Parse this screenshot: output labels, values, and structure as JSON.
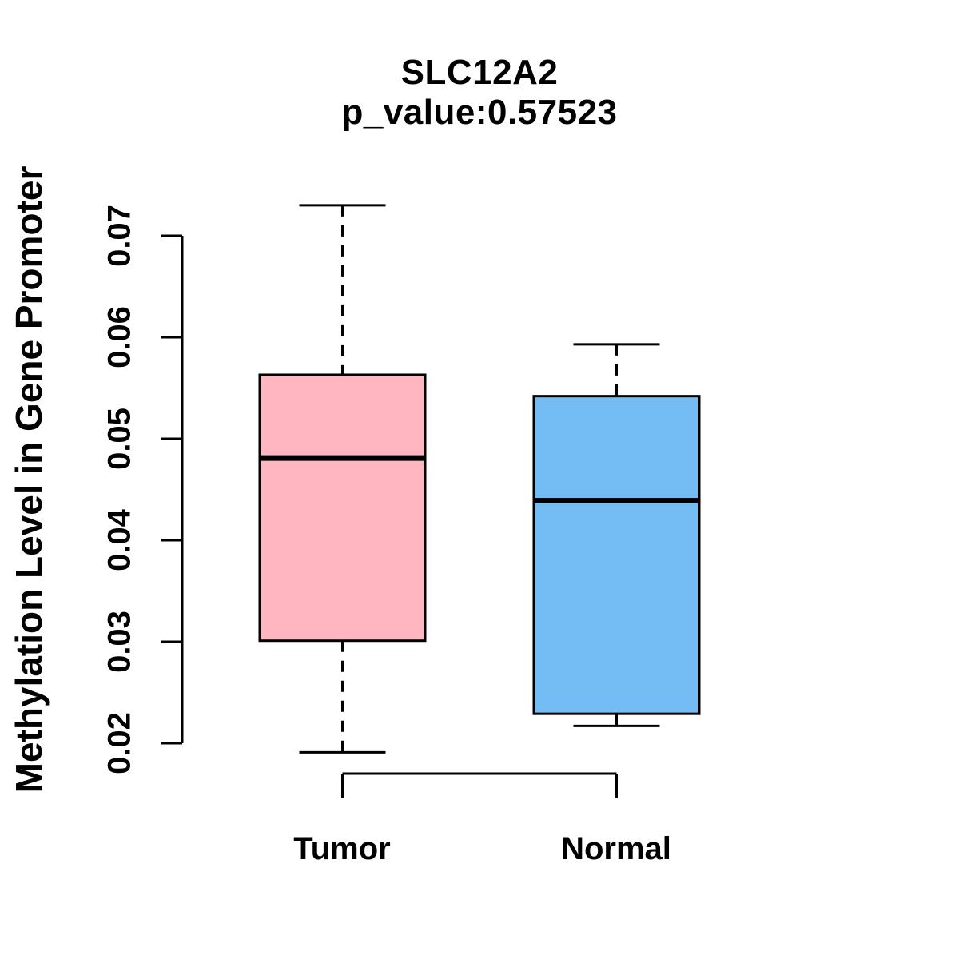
{
  "title": {
    "gene": "SLC12A2",
    "p_value_text": "p_value:0.57523",
    "p_value": 0.57523
  },
  "chart_data": {
    "type": "box",
    "title": "SLC12A2",
    "subtitle": "p_value:0.57523",
    "xlabel": "",
    "ylabel": "Methylation Level in Gene Promoter",
    "categories": [
      "Tumor",
      "Normal"
    ],
    "yticks": [
      0.02,
      0.03,
      0.04,
      0.05,
      0.06,
      0.07
    ],
    "ylim": [
      0.019,
      0.073
    ],
    "grid": false,
    "legend": null,
    "whisker_style": "dashed",
    "box_stroke": "#000000",
    "median_stroke": "#000000",
    "axis_color": "#000000",
    "series": [
      {
        "name": "Tumor",
        "fill": "#FFB6C1",
        "whisker_low": 0.0191,
        "q1": 0.0301,
        "median": 0.0481,
        "q3": 0.0563,
        "whisker_high": 0.073
      },
      {
        "name": "Normal",
        "fill": "#74BDF4",
        "whisker_low": 0.0217,
        "q1": 0.0229,
        "median": 0.0439,
        "q3": 0.0542,
        "whisker_high": 0.0593
      }
    ]
  }
}
